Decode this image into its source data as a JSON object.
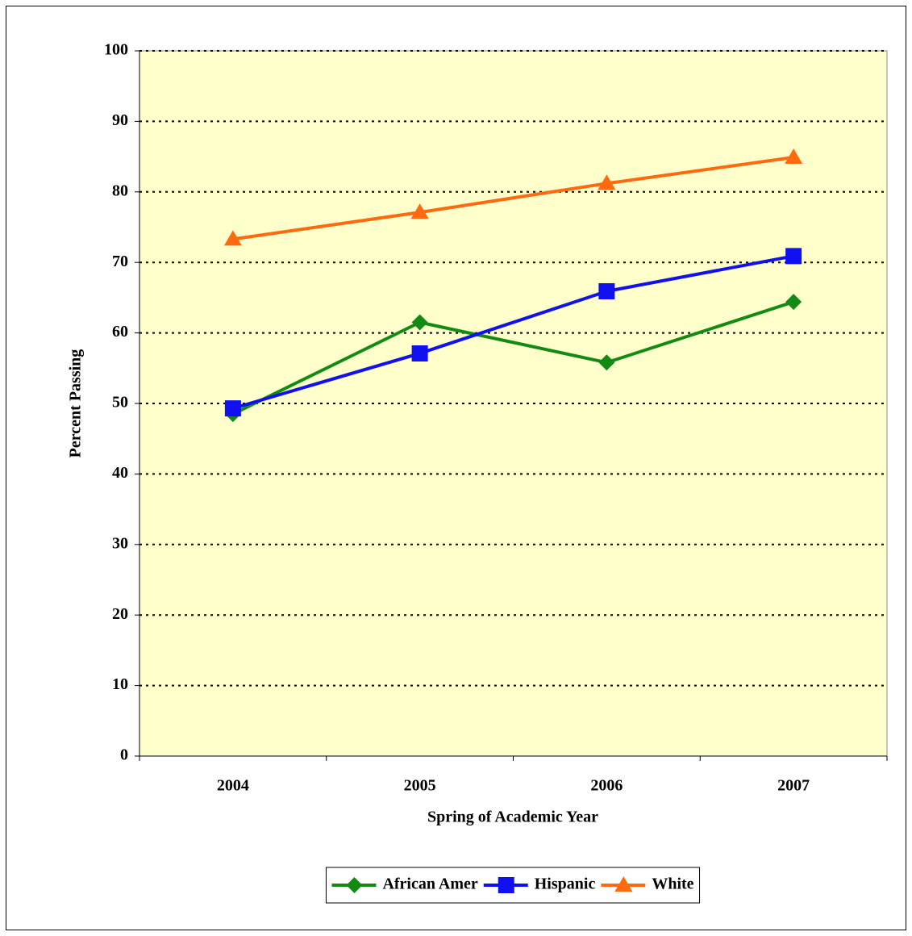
{
  "chart_data": {
    "type": "line",
    "x_label": "Spring of Academic Year",
    "y_label": "Percent Passing",
    "categories": [
      "2004",
      "2005",
      "2006",
      "2007"
    ],
    "series": [
      {
        "name": "African Amer",
        "color": "#138a13",
        "marker": "diamond",
        "values": [
          48.5,
          61.5,
          55.8,
          64.4
        ]
      },
      {
        "name": "Hispanic",
        "color": "#1010f0",
        "marker": "square",
        "values": [
          49.3,
          57.1,
          65.9,
          70.9
        ]
      },
      {
        "name": "White",
        "color": "#ff6a0e",
        "marker": "triangle",
        "values": [
          73.3,
          77.1,
          81.2,
          84.9
        ]
      }
    ],
    "ylim": [
      0,
      100
    ],
    "yticks": [
      0,
      10,
      20,
      30,
      40,
      50,
      60,
      70,
      80,
      90,
      100
    ],
    "grid": true,
    "legend": "bottom"
  }
}
